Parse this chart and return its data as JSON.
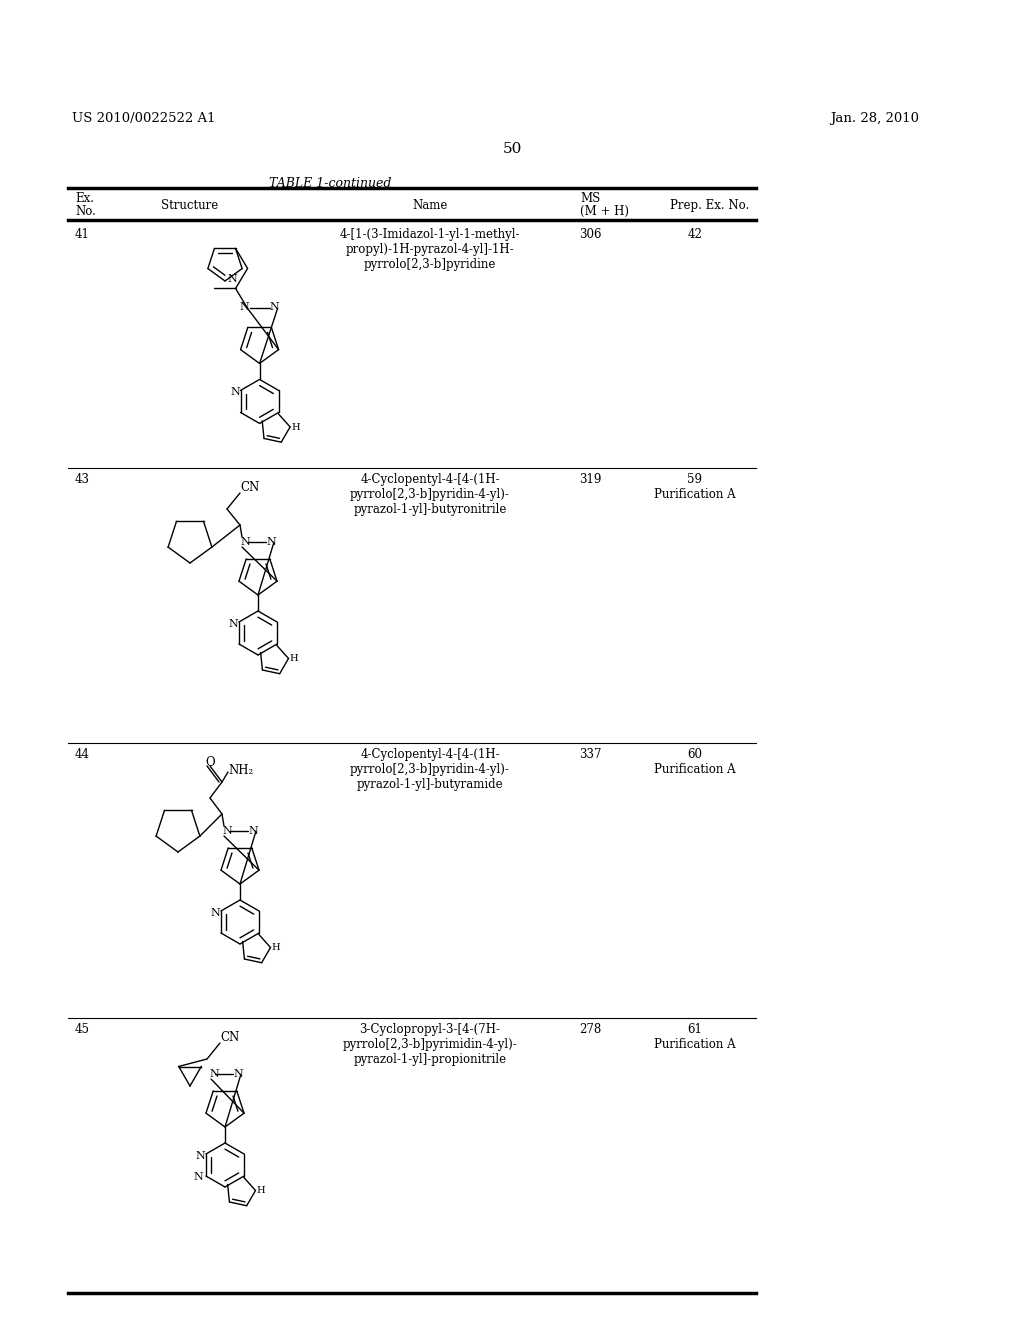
{
  "page_number": "50",
  "patent_number": "US 2010/0022522 A1",
  "patent_date": "Jan. 28, 2010",
  "table_title": "TABLE 1-continued",
  "rows": [
    {
      "ex_no": "41",
      "name": "4-[1-(3-Imidazol-1-yl-1-methyl-\npropyl)-1H-pyrazol-4-yl]-1H-\npyrrolo[2,3-b]pyridine",
      "ms": "306",
      "prep": "42"
    },
    {
      "ex_no": "43",
      "name": "4-Cyclopentyl-4-[4-(1H-\npyrrolo[2,3-b]pyridin-4-yl)-\npyrazol-1-yl]-butyronitrile",
      "ms": "319",
      "prep": "59\nPurification A"
    },
    {
      "ex_no": "44",
      "name": "4-Cyclopentyl-4-[4-(1H-\npyrrolo[2,3-b]pyridin-4-yl)-\npyrazol-1-yl]-butyramide",
      "ms": "337",
      "prep": "60\nPurification A"
    },
    {
      "ex_no": "45",
      "name": "3-Cyclopropyl-3-[4-(7H-\npyrrolo[2,3-b]pyrimidin-4-yl)-\npyrazol-1-yl]-propionitrile",
      "ms": "278",
      "prep": "61\nPurification A"
    }
  ]
}
